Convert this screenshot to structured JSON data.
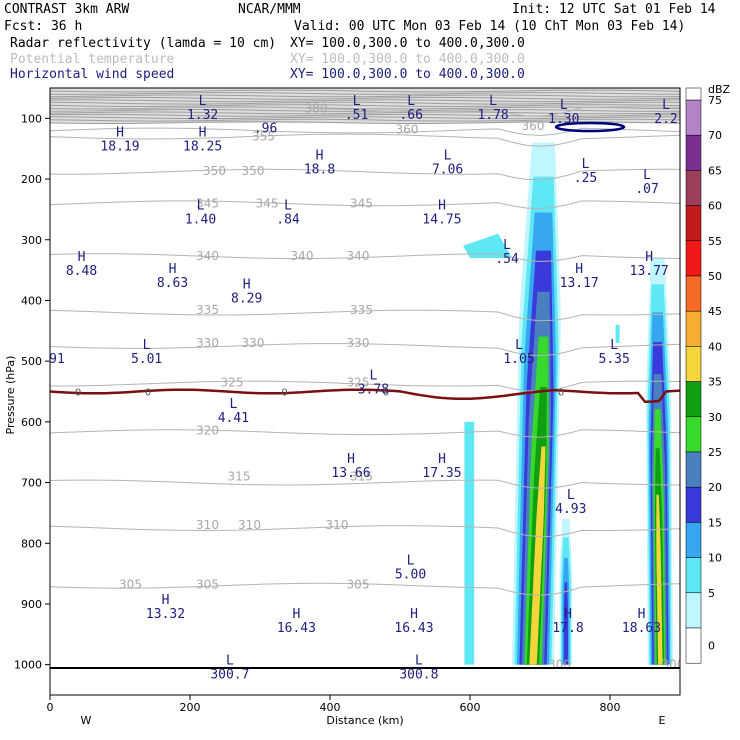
{
  "header": {
    "model": "CONTRAST   3km ARW",
    "source": "NCAR/MMM",
    "init": "Init: 12 UTC Sat 01 Feb 14",
    "fcst": "Fcst:   36 h",
    "valid": "Valid: 00 UTC Mon 03 Feb 14 (10 ChT Mon 03 Feb 14)",
    "fields": [
      {
        "name": "Radar reflectivity (lamda = 10 cm)",
        "xy": "XY=  100.0,300.0 to 400.0,300.0",
        "color": "#000000"
      },
      {
        "name": "Potential temperature",
        "xy": "XY=  100.0,300.0 to 400.0,300.0",
        "color": "#bdbdbd"
      },
      {
        "name": "Horizontal wind speed",
        "xy": "XY=  100.0,300.0 to 400.0,300.0",
        "color": "#202080"
      }
    ]
  },
  "chart_data": {
    "type": "cross-section",
    "xlabel": "Distance (km)",
    "ylabel": "Pressure (hPa)",
    "xlim": [
      0,
      900
    ],
    "ylim": [
      1050,
      50
    ],
    "xticks": [
      0,
      200,
      400,
      600,
      800
    ],
    "yticks": [
      100,
      200,
      300,
      400,
      500,
      600,
      700,
      800,
      900,
      1000
    ],
    "west_label": "W",
    "east_label": "E",
    "colorbar": {
      "unit": "dBZ",
      "levels": [
        0,
        5,
        10,
        15,
        20,
        25,
        30,
        35,
        40,
        45,
        50,
        55,
        60,
        65,
        70,
        75
      ],
      "colors": [
        "#ffffff",
        "#bff6ff",
        "#5ee8f4",
        "#36a6f0",
        "#3a3adc",
        "#4a80c0",
        "#37d92b",
        "#0f9f10",
        "#f5d63a",
        "#f8ad33",
        "#f46a26",
        "#f31818",
        "#c11b1b",
        "#9b3f5a",
        "#7a2f93",
        "#b483c7"
      ]
    },
    "theta_lines": [
      {
        "label": "355",
        "p": 130
      },
      {
        "label": "350",
        "p": 188
      },
      {
        "label": "345",
        "p": 240
      },
      {
        "label": "340",
        "p": 327
      },
      {
        "label": "335",
        "p": 420
      },
      {
        "label": "330",
        "p": 475
      },
      {
        "label": "325",
        "p": 537
      },
      {
        "label": "320",
        "p": 617
      },
      {
        "label": "315",
        "p": 700
      },
      {
        "label": "310",
        "p": 775
      },
      {
        "label": "305",
        "p": 870
      },
      {
        "label": "380",
        "p": 85
      },
      {
        "label": "360",
        "p": 120
      }
    ],
    "theta_labels": [
      {
        "text": "380",
        "x": 380,
        "p": 84
      },
      {
        "text": "360",
        "x": 510,
        "p": 118
      },
      {
        "text": "360",
        "x": 690,
        "p": 113
      },
      {
        "text": "355",
        "x": 305,
        "p": 130
      },
      {
        "text": "350",
        "x": 235,
        "p": 187
      },
      {
        "text": "350",
        "x": 290,
        "p": 187
      },
      {
        "text": "345",
        "x": 225,
        "p": 240
      },
      {
        "text": "345",
        "x": 310,
        "p": 240
      },
      {
        "text": "345",
        "x": 445,
        "p": 240
      },
      {
        "text": "340",
        "x": 225,
        "p": 327
      },
      {
        "text": "340",
        "x": 360,
        "p": 327
      },
      {
        "text": "340",
        "x": 440,
        "p": 327
      },
      {
        "text": "335",
        "x": 225,
        "p": 416
      },
      {
        "text": "335",
        "x": 445,
        "p": 416
      },
      {
        "text": "330",
        "x": 225,
        "p": 470
      },
      {
        "text": "330",
        "x": 290,
        "p": 470
      },
      {
        "text": "330",
        "x": 440,
        "p": 470
      },
      {
        "text": "325",
        "x": 260,
        "p": 535
      },
      {
        "text": "325",
        "x": 440,
        "p": 535
      },
      {
        "text": "320",
        "x": 225,
        "p": 614
      },
      {
        "text": "315",
        "x": 270,
        "p": 690
      },
      {
        "text": "315",
        "x": 445,
        "p": 690
      },
      {
        "text": "310",
        "x": 225,
        "p": 770
      },
      {
        "text": "310",
        "x": 285,
        "p": 770
      },
      {
        "text": "310",
        "x": 410,
        "p": 770
      },
      {
        "text": "305",
        "x": 115,
        "p": 868
      },
      {
        "text": "305",
        "x": 225,
        "p": 868
      },
      {
        "text": "305",
        "x": 440,
        "p": 868
      },
      {
        "text": "300",
        "x": 728,
        "p": 1000
      },
      {
        "text": "300",
        "x": 890,
        "p": 1000
      }
    ],
    "extrema": [
      {
        "kind": "L",
        "value": "1.32",
        "x": 218,
        "p": 78
      },
      {
        "kind": "",
        "value": ".96",
        "x": 308,
        "p": 100
      },
      {
        "kind": "L",
        "value": ".51",
        "x": 438,
        "p": 78
      },
      {
        "kind": "L",
        "value": ".66",
        "x": 516,
        "p": 78
      },
      {
        "kind": "L",
        "value": "1.78",
        "x": 633,
        "p": 78
      },
      {
        "kind": "L",
        "value": "1.30",
        "x": 734,
        "p": 85
      },
      {
        "kind": "L",
        "value": "2.2",
        "x": 880,
        "p": 85
      },
      {
        "kind": "H",
        "value": "18.19",
        "x": 100,
        "p": 130
      },
      {
        "kind": "H",
        "value": "18.25",
        "x": 218,
        "p": 130
      },
      {
        "kind": "H",
        "value": "18.8",
        "x": 385,
        "p": 168
      },
      {
        "kind": "L",
        "value": "7.06",
        "x": 568,
        "p": 168
      },
      {
        "kind": "L",
        "value": ".25",
        "x": 765,
        "p": 182
      },
      {
        "kind": "L",
        "value": ".07",
        "x": 853,
        "p": 200
      },
      {
        "kind": "L",
        "value": "1.40",
        "x": 215,
        "p": 250
      },
      {
        "kind": "L",
        "value": ".84",
        "x": 340,
        "p": 250
      },
      {
        "kind": "H",
        "value": "14.75",
        "x": 560,
        "p": 250
      },
      {
        "kind": "L",
        "value": ".54",
        "x": 653,
        "p": 315
      },
      {
        "kind": "H",
        "value": "8.48",
        "x": 45,
        "p": 335
      },
      {
        "kind": "H",
        "value": "8.63",
        "x": 175,
        "p": 355
      },
      {
        "kind": "H",
        "value": "8.29",
        "x": 281,
        "p": 380
      },
      {
        "kind": "H",
        "value": "13.17",
        "x": 756,
        "p": 355
      },
      {
        "kind": "H",
        "value": "13.77",
        "x": 856,
        "p": 335
      },
      {
        "kind": "",
        "value": "91",
        "x": 10,
        "p": 480
      },
      {
        "kind": "L",
        "value": "5.01",
        "x": 138,
        "p": 480
      },
      {
        "kind": "L",
        "value": "1.05",
        "x": 670,
        "p": 480
      },
      {
        "kind": "L",
        "value": "5.35",
        "x": 806,
        "p": 480
      },
      {
        "kind": "L",
        "value": "3.78",
        "x": 462,
        "p": 530
      },
      {
        "kind": "L",
        "value": "4.41",
        "x": 262,
        "p": 577
      },
      {
        "kind": "H",
        "value": "13.66",
        "x": 430,
        "p": 668
      },
      {
        "kind": "H",
        "value": "17.35",
        "x": 560,
        "p": 668
      },
      {
        "kind": "L",
        "value": "4.93",
        "x": 744,
        "p": 727
      },
      {
        "kind": "L",
        "value": "5.00",
        "x": 515,
        "p": 835
      },
      {
        "kind": "H",
        "value": "13.32",
        "x": 165,
        "p": 900
      },
      {
        "kind": "H",
        "value": "16.43",
        "x": 352,
        "p": 923
      },
      {
        "kind": "H",
        "value": "16.43",
        "x": 520,
        "p": 923
      },
      {
        "kind": "H",
        "value": "17.8",
        "x": 740,
        "p": 923
      },
      {
        "kind": "H",
        "value": "18.63",
        "x": 845,
        "p": 923
      },
      {
        "kind": "L",
        "value": "300.7",
        "x": 257,
        "p": 1000
      },
      {
        "kind": "L",
        "value": "300.8",
        "x": 527,
        "p": 1000
      }
    ],
    "freezing_level": {
      "label": "0",
      "p": 550
    },
    "reflectivity_cells": [
      {
        "x": [
          645,
          760
        ],
        "p": [
          140,
          1010
        ],
        "max_dbz": 40
      },
      {
        "x": [
          840,
          890
        ],
        "p": [
          330,
          1010
        ],
        "max_dbz": 40
      },
      {
        "x": [
          590,
          605
        ],
        "p": [
          600,
          1010
        ],
        "max_dbz": 5
      },
      {
        "x": [
          725,
          745
        ],
        "p": [
          760,
          1010
        ],
        "max_dbz": 20
      }
    ]
  }
}
